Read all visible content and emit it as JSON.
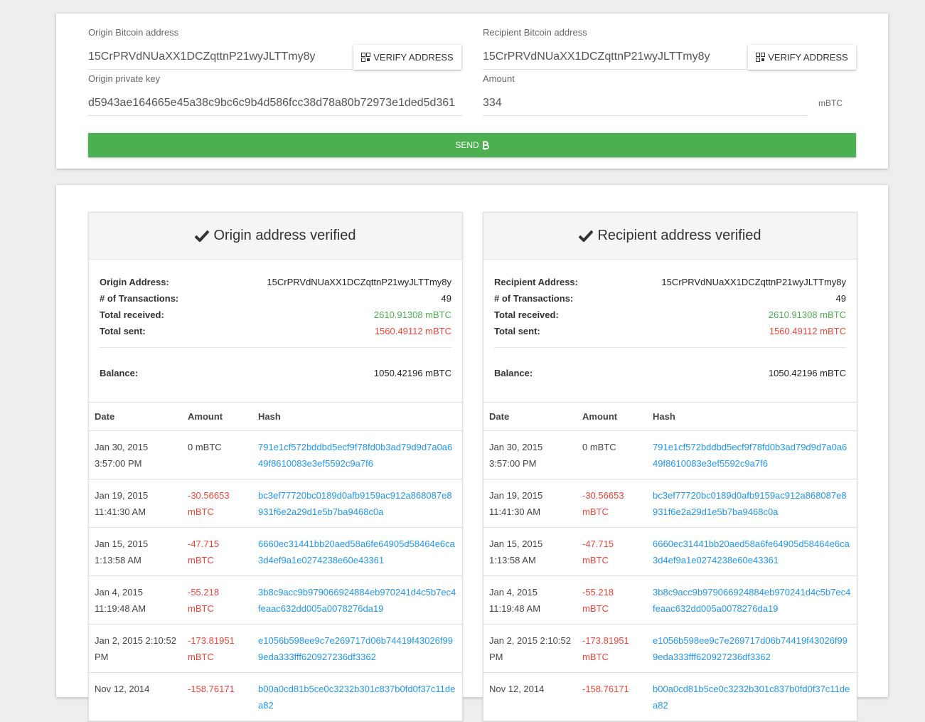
{
  "form": {
    "origin_label": "Origin Bitcoin address",
    "origin_value": "15CrPRVdNUaXX1DCZqttnP21wyJLTTmy8y",
    "verify_button": "VERIFY ADDRESS",
    "key_label": "Origin private key",
    "key_value": "d5943ae164665e45a38c9bc6c9b4d586fcc38d78a80b72973e1ded5d361",
    "recipient_label": "Recipient Bitcoin address",
    "recipient_value": "15CrPRVdNUaXX1DCZqttnP21wyJLTTmy8y",
    "amount_label": "Amount",
    "amount_value": "334",
    "unit": "mBTC",
    "send_button": "SEND"
  },
  "panels": [
    {
      "title": "Origin address verified",
      "stats": [
        {
          "label": "Origin Address:",
          "value": "15CrPRVdNUaXX1DCZqttnP21wyJLTTmy8y"
        },
        {
          "label": "# of Transactions:",
          "value": "49"
        },
        {
          "label": "Total received:",
          "value": "2610.91308 mBTC"
        },
        {
          "label": "Total sent:",
          "value": "1560.49112 mBTC"
        }
      ],
      "balance": {
        "label": "Balance:",
        "value": "1050.42196 mBTC"
      },
      "columns": [
        "Date",
        "Amount",
        "Hash"
      ],
      "rows": [
        [
          "Jan 30, 2015 3:57:00 PM",
          "0 mBTC",
          "791e1cf572bddbd5ecf9f78fd0b3ad79d9d7a0a649f8610083e3ef5592c9a7f6"
        ],
        [
          "Jan 19, 2015 11:41:30 AM",
          "-30.56653 mBTC",
          "bc3ef77720bc0189d0afb9159ac912a868087e8931f6e2a29d1e5b7ba9468c0a"
        ],
        [
          "Jan 15, 2015 1:13:58 AM",
          "-47.715 mBTC",
          "6660ec31441bb20aed58a6fe64905d58464e6ca3d4ef9a1e0274238e60e43361"
        ],
        [
          "Jan 4, 2015 11:19:48 AM",
          "-55.218 mBTC",
          "3b8c9acc9b979066924884eb970241d4c5b7ec4feaac632dd005a0078276da19"
        ],
        [
          "Jan 2, 2015 2:10:52 PM",
          "-173.81951 mBTC",
          "e1056b598ee9c7e269717d06b74419f43026f999eda333fff620927236df3362"
        ],
        [
          "Nov 12, 2014",
          "-158.76171",
          "b00a0cd81b5ce0c3232b301c837b0fd0f37c11dea82"
        ]
      ]
    },
    {
      "title": "Recipient address verified",
      "stats": [
        {
          "label": "Recipient Address:",
          "value": "15CrPRVdNUaXX1DCZqttnP21wyJLTTmy8y"
        },
        {
          "label": "# of Transactions:",
          "value": "49"
        },
        {
          "label": "Total received:",
          "value": "2610.91308 mBTC"
        },
        {
          "label": "Total sent:",
          "value": "1560.49112 mBTC"
        }
      ],
      "balance": {
        "label": "Balance:",
        "value": "1050.42196 mBTC"
      },
      "columns": [
        "Date",
        "Amount",
        "Hash"
      ],
      "rows": [
        [
          "Jan 30, 2015 3:57:00 PM",
          "0 mBTC",
          "791e1cf572bddbd5ecf9f78fd0b3ad79d9d7a0a649f8610083e3ef5592c9a7f6"
        ],
        [
          "Jan 19, 2015 11:41:30 AM",
          "-30.56653 mBTC",
          "bc3ef77720bc0189d0afb9159ac912a868087e8931f6e2a29d1e5b7ba9468c0a"
        ],
        [
          "Jan 15, 2015 1:13:58 AM",
          "-47.715 mBTC",
          "6660ec31441bb20aed58a6fe64905d58464e6ca3d4ef9a1e0274238e60e43361"
        ],
        [
          "Jan 4, 2015 11:19:48 AM",
          "-55.218 mBTC",
          "3b8c9acc9b979066924884eb970241d4c5b7ec4feaac632dd005a0078276da19"
        ],
        [
          "Jan 2, 2015 2:10:52 PM",
          "-173.81951 mBTC",
          "e1056b598ee9c7e269717d06b74419f43026f999eda333fff620927236df3362"
        ],
        [
          "Nov 12, 2014",
          "-158.76171",
          "b00a0cd81b5ce0c3232b301c837b0fd0f37c11dea82"
        ]
      ]
    }
  ]
}
